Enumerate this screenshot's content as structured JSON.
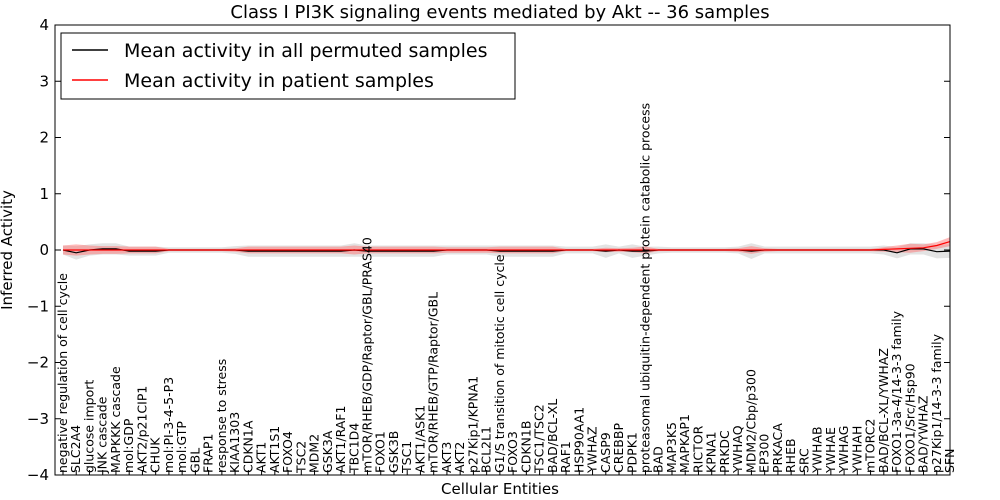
{
  "chart_data": {
    "type": "line",
    "title": "Class I PI3K signaling events mediated by Akt -- 36 samples",
    "xlabel": "Cellular Entities",
    "ylabel": "Inferred Activity",
    "ylim": [
      -4,
      4
    ],
    "yticks": [
      -4,
      -3,
      -2,
      -1,
      0,
      1,
      2,
      3,
      4
    ],
    "ytick_labels": [
      "−4",
      "−3",
      "−2",
      "−1",
      "0",
      "1",
      "2",
      "3",
      "4"
    ],
    "legend_position": "top-left",
    "categories": [
      "negative regulation of cell cycle",
      "SLC2A4",
      "glucose import",
      "JNK cascade",
      "MAPKKK cascade",
      "mol:GDP",
      "AKT2/p21CIP1",
      "CHUK",
      "mol:PI-3-4-5-P3",
      "mol:GTP",
      "GBL",
      "FRAP1",
      "response to stress",
      "KIAA1303",
      "CDKN1A",
      "AKT1",
      "AKT1S1",
      "FOXO4",
      "TSC2",
      "MDM2",
      "GSK3A",
      "AKT1/RAF1",
      "TBC1D4",
      "mTOR/RHEB/GDP/Raptor/GBL/PRAS40",
      "FOXO1",
      "GSK3B",
      "TSC1",
      "AKT1/ASK1",
      "mTOR/RHEB/GTP/Raptor/GBL",
      "AKT3",
      "AKT2",
      "p27Kip1/KPNA1",
      "BCL2L1",
      "G1/S transition of mitotic cell cycle",
      "FOXO3",
      "CDKN1B",
      "TSC1/TSC2",
      "BAD/BCL-XL",
      "RAF1",
      "HSP90AA1",
      "YWHAZ",
      "CASP9",
      "CREBBP",
      "PDPK1",
      "proteasomal ubiquitin-dependent protein catabolic process",
      "BAD",
      "MAP3K5",
      "MAPKAP1",
      "RICTOR",
      "KPNA1",
      "PRKDC",
      "YWHAQ",
      "MDM2/Cbp/p300",
      "EP300",
      "PRKACA",
      "RHEB",
      "SRC",
      "YWHAB",
      "YWHAE",
      "YWHAG",
      "YWHAH",
      "mTORC2",
      "BAD/BCL-XL/YWHAZ",
      "FOXO1-3a-4/14-3-3 family",
      "FOXO1/Src/Hsp90",
      "BAD/YWHAZ",
      "p27Kip1/14-3-3 family",
      "SFN"
    ],
    "series": [
      {
        "name": "Mean activity in all permuted samples",
        "color": "#000000",
        "values": [
          0,
          -0.05,
          0,
          0.02,
          0.02,
          -0.02,
          -0.02,
          -0.02,
          0,
          0,
          0,
          0,
          0,
          0,
          -0.02,
          -0.02,
          -0.02,
          -0.02,
          -0.02,
          -0.02,
          -0.02,
          -0.02,
          0,
          -0.02,
          -0.02,
          -0.02,
          -0.02,
          -0.02,
          -0.02,
          0,
          0,
          0,
          0,
          -0.02,
          -0.02,
          -0.02,
          -0.02,
          -0.02,
          0,
          0,
          0,
          -0.02,
          0,
          -0.02,
          -0.02,
          0,
          0,
          0,
          0,
          0,
          0,
          0,
          -0.02,
          0,
          0,
          0,
          0,
          0,
          0,
          0,
          0,
          0,
          0,
          -0.05,
          0.02,
          0.02,
          -0.03,
          -0.02
        ],
        "band": [
          0.08,
          0.12,
          0.1,
          0.1,
          0.1,
          0.08,
          0.08,
          0.08,
          0.05,
          0.05,
          0.05,
          0.05,
          0.05,
          0.07,
          0.1,
          0.1,
          0.1,
          0.1,
          0.1,
          0.1,
          0.1,
          0.1,
          0.12,
          0.1,
          0.1,
          0.1,
          0.1,
          0.1,
          0.1,
          0.08,
          0.08,
          0.08,
          0.08,
          0.1,
          0.1,
          0.1,
          0.1,
          0.1,
          0.06,
          0.06,
          0.06,
          0.12,
          0.06,
          0.12,
          0.08,
          0.06,
          0.05,
          0.05,
          0.05,
          0.05,
          0.05,
          0.06,
          0.14,
          0.06,
          0.06,
          0.06,
          0.06,
          0.06,
          0.06,
          0.06,
          0.06,
          0.06,
          0.08,
          0.1,
          0.1,
          0.1,
          0.12,
          0.12
        ]
      },
      {
        "name": "Mean activity in patient samples",
        "color": "#ff0000",
        "values": [
          0,
          0,
          0,
          0,
          0,
          0,
          0,
          0,
          0,
          0,
          0,
          0,
          0,
          0,
          0,
          0,
          0,
          0,
          0,
          0,
          0,
          0,
          0,
          0,
          0,
          0,
          0,
          0,
          0,
          0,
          0,
          0,
          0,
          0,
          0,
          0,
          0,
          0,
          0,
          0,
          0,
          0,
          0,
          0,
          0,
          0,
          0,
          0,
          0,
          0,
          0,
          0,
          0,
          0,
          0,
          0,
          0,
          0,
          0,
          0,
          0,
          0,
          0.01,
          0.02,
          0.03,
          0.04,
          0.08,
          0.15
        ],
        "band": [
          0.08,
          0.1,
          0.08,
          0.07,
          0.07,
          0.06,
          0.06,
          0.06,
          0.02,
          0.02,
          0.02,
          0.02,
          0.02,
          0.03,
          0.06,
          0.06,
          0.06,
          0.06,
          0.06,
          0.06,
          0.06,
          0.06,
          0.08,
          0.06,
          0.06,
          0.06,
          0.06,
          0.06,
          0.06,
          0.05,
          0.05,
          0.05,
          0.05,
          0.06,
          0.06,
          0.06,
          0.06,
          0.06,
          0.02,
          0.02,
          0.02,
          0.04,
          0.03,
          0.04,
          0.06,
          0.02,
          0.02,
          0.02,
          0.02,
          0.02,
          0.02,
          0.03,
          0.07,
          0.03,
          0.02,
          0.02,
          0.02,
          0.02,
          0.02,
          0.02,
          0.02,
          0.02,
          0.04,
          0.06,
          0.08,
          0.06,
          0.06,
          0.08
        ]
      }
    ]
  }
}
